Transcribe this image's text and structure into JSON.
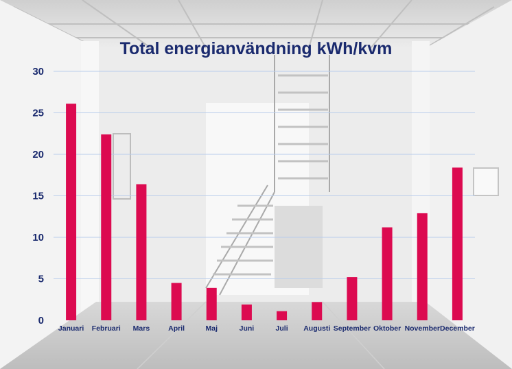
{
  "colors": {
    "bar": "#dc0a50",
    "text": "#1a2a6e",
    "grid": "#b9cdeb"
  },
  "background": {
    "description_icon": "photo-staircase-hallway"
  },
  "chart_data": {
    "type": "bar",
    "title": "Total energianvändning kWh/kvm",
    "xlabel": "",
    "ylabel": "",
    "ylim": [
      0,
      30
    ],
    "yticks": [
      0,
      5,
      10,
      15,
      20,
      25,
      30
    ],
    "grid": true,
    "categories": [
      "Januari",
      "Februari",
      "Mars",
      "April",
      "Maj",
      "Juni",
      "Juli",
      "Augusti",
      "September",
      "Oktober",
      "November",
      "December"
    ],
    "values": [
      26.1,
      22.4,
      16.4,
      4.5,
      3.9,
      1.9,
      1.1,
      2.2,
      5.2,
      11.2,
      12.9,
      18.4
    ]
  }
}
